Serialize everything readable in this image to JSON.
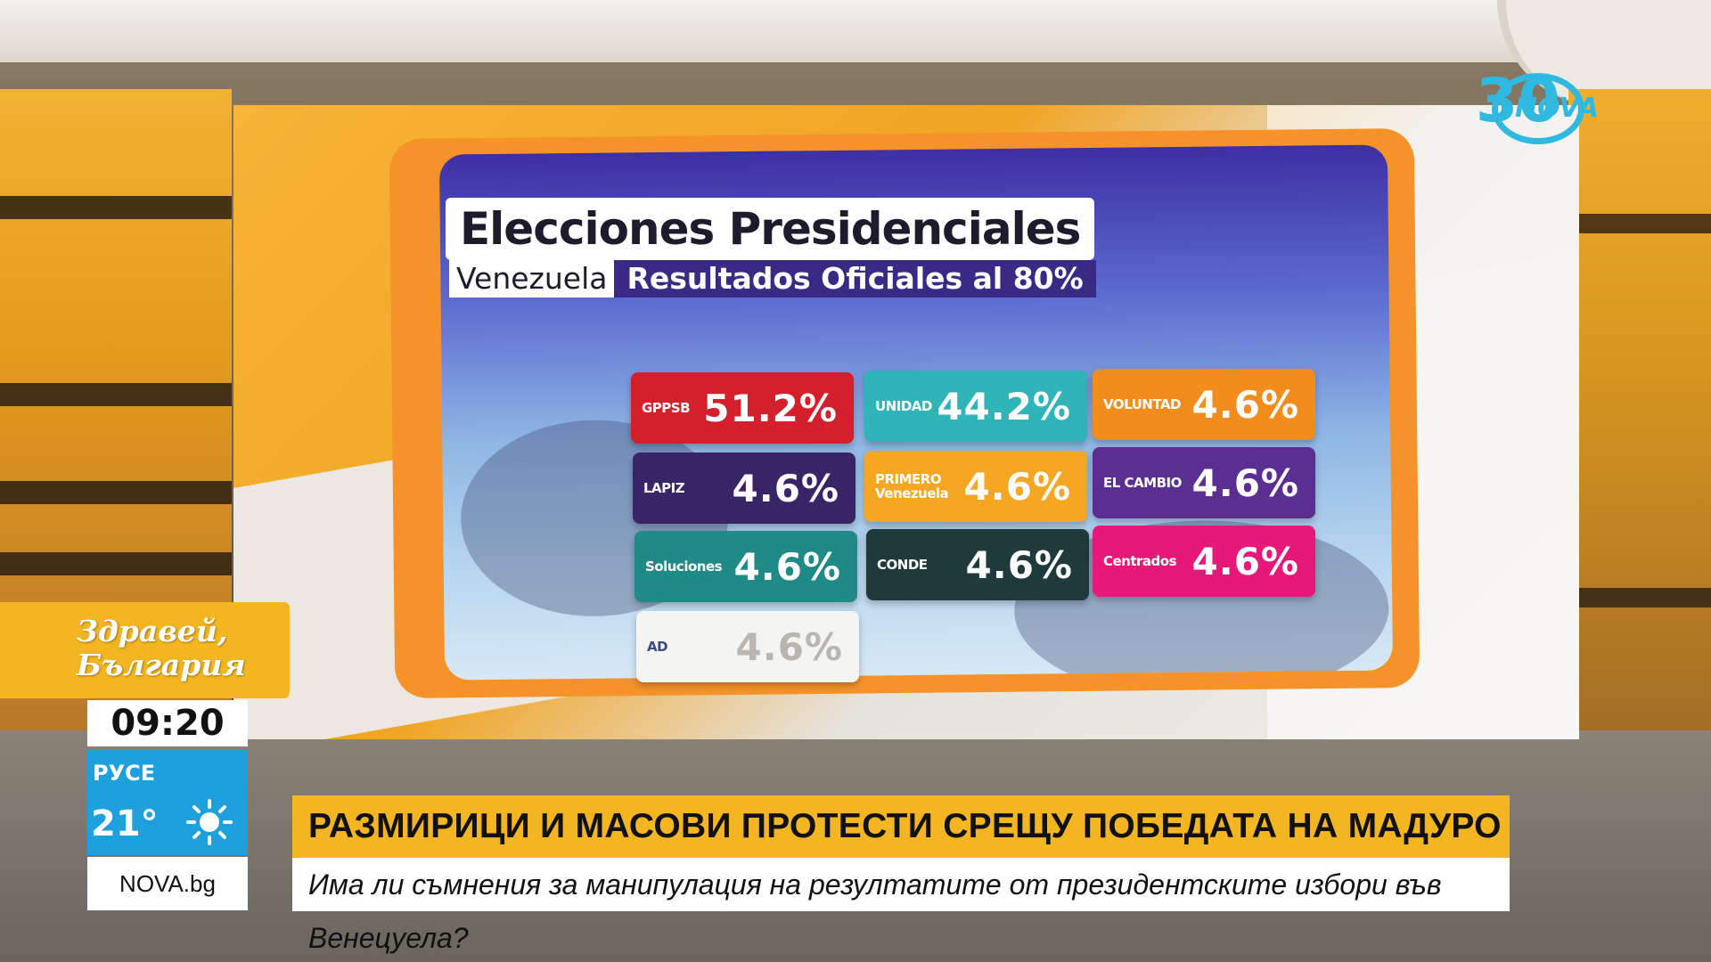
{
  "broadcast": {
    "show_name_line1": "Здравей,",
    "show_name_line2": "България",
    "time": "09:20",
    "city": "РУСЕ",
    "temperature": "21°",
    "weather_icon": "sun-icon",
    "site": "NOVA.bg",
    "headline": "РАЗМИРИЦИ И МАСОВИ ПРОТЕСТИ СРЕЩУ ПОБЕДАТА НА МАДУРО",
    "subheadline": "Има ли съмнения за манипулация на резултатите от президентските избори във Венецуела?",
    "logo_number": "30",
    "logo_text": "NOVA",
    "colors": {
      "accent_yellow": "#f3b521",
      "weather_blue": "#1ea0dc",
      "logo_cyan": "#2fb9e0"
    }
  },
  "graphic": {
    "title": "Elecciones Presidenciales",
    "country": "Venezuela",
    "results_label": "Resultados Oficiales al 80%",
    "tiles": [
      {
        "party": "GPPSB",
        "pct": "51.2%",
        "color": "#d3202c"
      },
      {
        "party": "UNIDAD",
        "pct": "44.2%",
        "color": "#2fb5b8"
      },
      {
        "party": "VOLUNTAD",
        "pct": "4.6%",
        "color": "#f28c1c"
      },
      {
        "party": "LAPIZ",
        "pct": "4.6%",
        "color": "#3a2468"
      },
      {
        "party": "PRIMERO Venezuela",
        "pct": "4.6%",
        "color": "#f5a623"
      },
      {
        "party": "EL CAMBIO",
        "pct": "4.6%",
        "color": "#5a2f91"
      },
      {
        "party": "Soluciones",
        "pct": "4.6%",
        "color": "#1f8a86"
      },
      {
        "party": "CONDE",
        "pct": "4.6%",
        "color": "#1f3a3a"
      },
      {
        "party": "Centrados",
        "pct": "4.6%",
        "color": "#e6197a"
      },
      {
        "party": "AD",
        "pct": "4.6%",
        "color": "#f4f4f2"
      }
    ]
  }
}
